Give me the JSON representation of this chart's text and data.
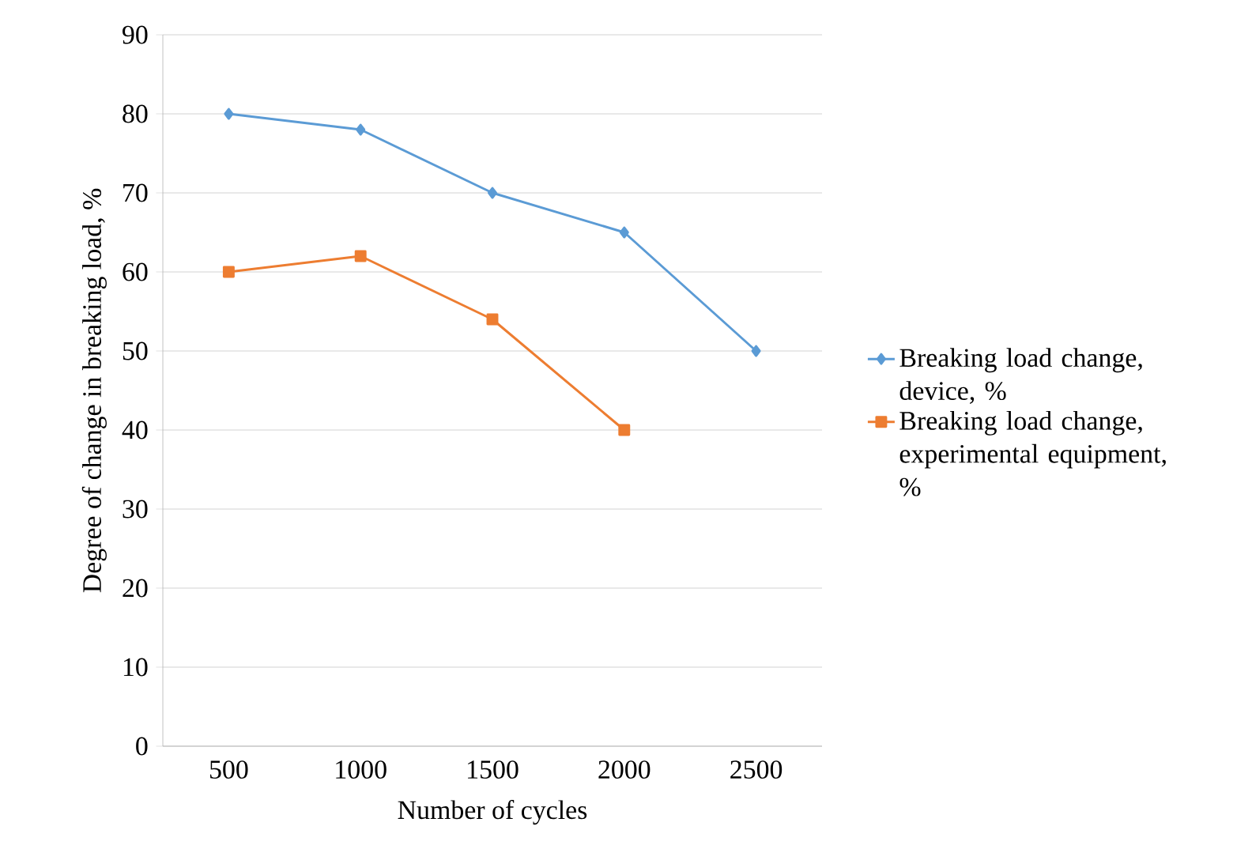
{
  "chart_data": {
    "type": "line",
    "xlabel": "Number of cycles",
    "ylabel": "Degree of change in breaking load, %",
    "categories": [
      "500",
      "1000",
      "1500",
      "2000",
      "2500"
    ],
    "series": [
      {
        "name": "Breaking load change, device, %",
        "color": "#5b9bd5",
        "marker": "diamond",
        "values": [
          80,
          78,
          70,
          65,
          50
        ]
      },
      {
        "name": "Breaking load change, experimental equipment, %",
        "color": "#ed7d31",
        "marker": "square",
        "values": [
          60,
          62,
          54,
          40,
          null
        ]
      }
    ],
    "ylim": [
      0,
      90
    ],
    "yticks": [
      0,
      10,
      20,
      30,
      40,
      50,
      60,
      70,
      80,
      90
    ],
    "grid": "y",
    "legend": "right",
    "line_style": "solid"
  }
}
